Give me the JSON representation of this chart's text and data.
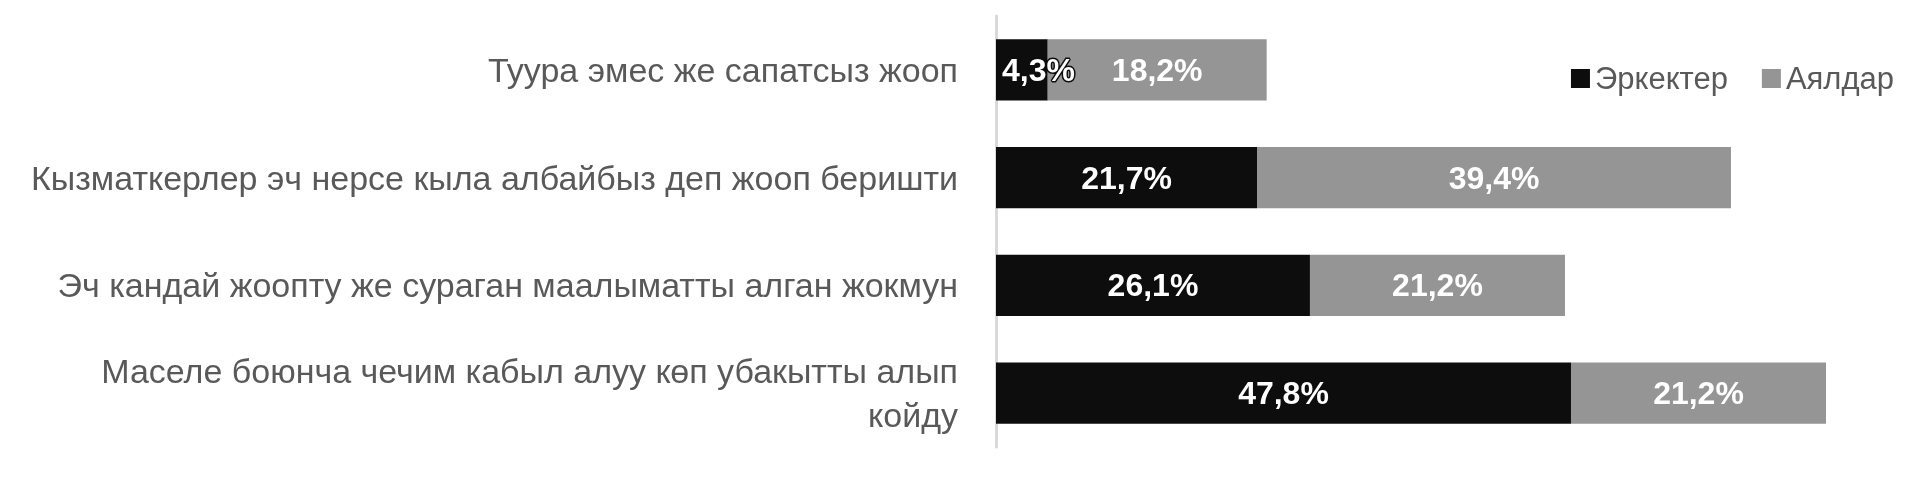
{
  "chart_data": {
    "type": "bar",
    "orientation": "horizontal",
    "stacked": true,
    "categories": [
      "Туура эмес же сапатсыз жооп",
      "Кызматкерлер эч нерсе кыла албайбыз деп жооп беришти",
      "Эч кандай жоопту же сураган маалыматты алган жокмун",
      "Маселе боюнча чечим кабыл алуу көп убакытты алып койду"
    ],
    "series": [
      {
        "name": "Эркектер",
        "color": "#0d0d0d",
        "values": [
          4.3,
          21.7,
          26.1,
          47.8
        ],
        "value_labels": [
          "4,3%",
          "21,7%",
          "26,1%",
          "47,8%"
        ]
      },
      {
        "name": "Аялдар",
        "color": "#959595",
        "values": [
          18.2,
          39.4,
          21.2,
          21.2
        ],
        "value_labels": [
          "18,2%",
          "39,4%",
          "21,2%",
          "21,2%"
        ]
      }
    ],
    "legend": "top right",
    "grid": false,
    "tick_labels": "y"
  }
}
